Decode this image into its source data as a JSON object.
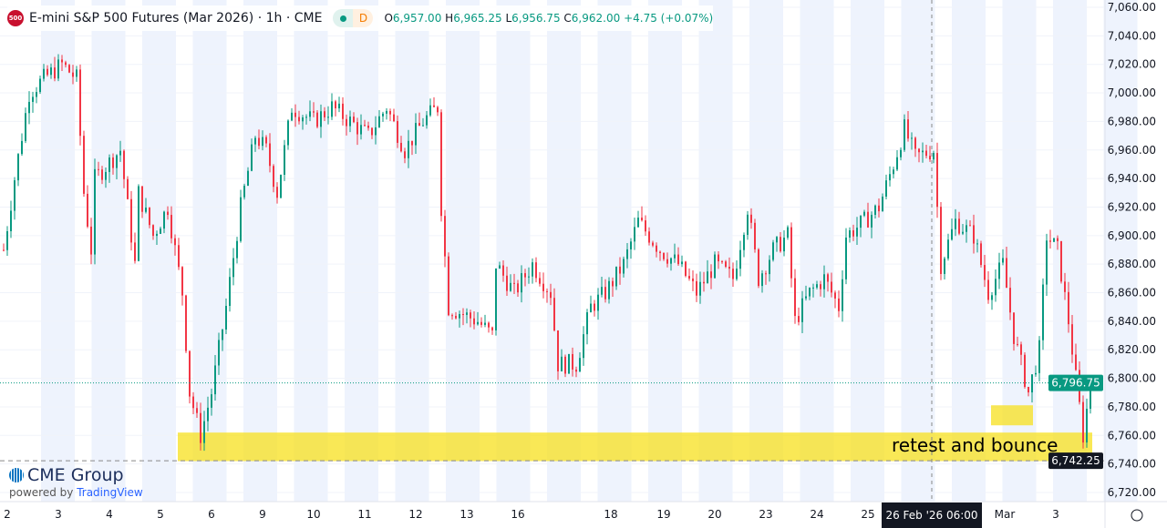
{
  "header": {
    "logo_text": "500",
    "title": "E-mini S&P 500 Futures (Mar 2026) · 1h · CME",
    "status_letter": "D",
    "open_label": "O",
    "open": "6,957.00",
    "high_label": "H",
    "high": "6,965.25",
    "low_label": "L",
    "low": "6,956.75",
    "close_label": "C",
    "close": "6,962.00",
    "change": "+4.75 (+0.07%)"
  },
  "branding": {
    "name": "CME Group",
    "powered_by": "powered by",
    "platform": "TradingView"
  },
  "annotation": {
    "text": "retest and bounce",
    "color": "#f7e01d"
  },
  "colors": {
    "up": "#089981",
    "down": "#f23645",
    "session_band": "#eef3fd"
  },
  "chart_data": {
    "type": "candlestick",
    "title": "E-mini S&P 500 Futures (Mar 2026) · 1h · CME",
    "y_ticks": [
      "7,060.00",
      "7,040.00",
      "7,020.00",
      "7,000.00",
      "6,980.00",
      "6,960.00",
      "6,940.00",
      "6,920.00",
      "6,900.00",
      "6,880.00",
      "6,860.00",
      "6,840.00",
      "6,820.00",
      "6,800.00",
      "6,780.00",
      "6,760.00",
      "6,740.00",
      "6,720.00"
    ],
    "ylim": [
      6720,
      7060
    ],
    "x_ticks": [
      "2",
      "3",
      "4",
      "5",
      "6",
      "9",
      "10",
      "11",
      "12",
      "13",
      "16",
      "18",
      "19",
      "20",
      "23",
      "24",
      "25",
      "Mar",
      "3"
    ],
    "crosshair_x_label": "26 Feb '26   06:00",
    "last_price": "6,796.75",
    "crosshair_price": "6,742.25",
    "support_zone": [
      6742,
      6762
    ],
    "secondary_zone": [
      6768,
      6776
    ],
    "price_path_hourly": [
      [
        0,
        6890
      ],
      [
        3,
        6940
      ],
      [
        7,
        7000
      ],
      [
        11,
        7010
      ],
      [
        16,
        7020
      ],
      [
        20,
        7010
      ],
      [
        22,
        6930
      ],
      [
        24,
        6890
      ],
      [
        25,
        6940
      ],
      [
        32,
        6960
      ],
      [
        36,
        6880
      ],
      [
        37,
        6930
      ],
      [
        41,
        6900
      ],
      [
        45,
        6920
      ],
      [
        49,
        6860
      ],
      [
        51,
        6790
      ],
      [
        54,
        6760
      ],
      [
        57,
        6790
      ],
      [
        61,
        6850
      ],
      [
        65,
        6920
      ],
      [
        69,
        6970
      ],
      [
        72,
        6960
      ],
      [
        75,
        6930
      ],
      [
        79,
        6990
      ],
      [
        85,
        6980
      ],
      [
        90,
        6990
      ],
      [
        95,
        6980
      ],
      [
        100,
        6970
      ],
      [
        105,
        6990
      ],
      [
        110,
        6960
      ],
      [
        115,
        6980
      ],
      [
        119,
        6990
      ],
      [
        120,
        6920
      ],
      [
        122,
        6850
      ],
      [
        130,
        6840
      ],
      [
        134,
        6830
      ],
      [
        135,
        6880
      ],
      [
        140,
        6860
      ],
      [
        145,
        6880
      ],
      [
        150,
        6860
      ],
      [
        152,
        6810
      ],
      [
        157,
        6810
      ],
      [
        161,
        6850
      ],
      [
        165,
        6860
      ],
      [
        170,
        6880
      ],
      [
        174,
        6910
      ],
      [
        180,
        6890
      ],
      [
        185,
        6880
      ],
      [
        190,
        6860
      ],
      [
        195,
        6880
      ],
      [
        200,
        6870
      ],
      [
        204,
        6920
      ],
      [
        207,
        6870
      ],
      [
        211,
        6890
      ],
      [
        215,
        6900
      ],
      [
        217,
        6840
      ],
      [
        221,
        6860
      ],
      [
        225,
        6870
      ],
      [
        229,
        6850
      ],
      [
        231,
        6900
      ],
      [
        236,
        6910
      ],
      [
        240,
        6920
      ],
      [
        244,
        6950
      ],
      [
        247,
        6975
      ],
      [
        250,
        6955
      ],
      [
        255,
        6960
      ],
      [
        257,
        6880
      ],
      [
        261,
        6910
      ],
      [
        266,
        6900
      ],
      [
        270,
        6860
      ],
      [
        274,
        6880
      ],
      [
        277,
        6830
      ],
      [
        281,
        6790
      ],
      [
        284,
        6820
      ],
      [
        286,
        6900
      ],
      [
        289,
        6890
      ],
      [
        292,
        6840
      ],
      [
        296,
        6760
      ],
      [
        298,
        6796
      ]
    ]
  }
}
